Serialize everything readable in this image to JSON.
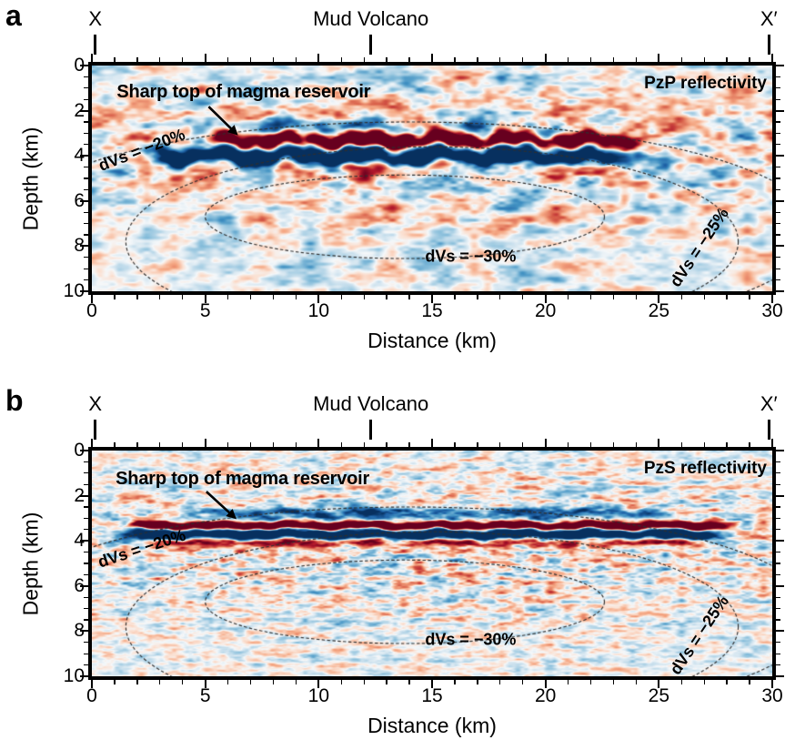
{
  "figure": {
    "background": "#ffffff",
    "frame_color": "#000000"
  },
  "colormap_stops": [
    [
      -1.0,
      "#07305f"
    ],
    [
      -0.72,
      "#1f63a8"
    ],
    [
      -0.5,
      "#4292c3"
    ],
    [
      -0.3,
      "#8fc2dd"
    ],
    [
      -0.12,
      "#d3e5f0"
    ],
    [
      0.0,
      "#f5f8fa"
    ],
    [
      0.12,
      "#fbe0d1"
    ],
    [
      0.3,
      "#f5a884"
    ],
    [
      0.5,
      "#d8604a"
    ],
    [
      0.72,
      "#b2182b"
    ],
    [
      1.0,
      "#67001f"
    ]
  ],
  "chart_data": [
    {
      "type": "heatmap",
      "panel_letter": "a",
      "title": "PzP reflectivity",
      "xlabel": "Distance (km)",
      "ylabel": "Depth (km)",
      "xlim": [
        0,
        30
      ],
      "ylim": [
        0,
        10
      ],
      "x_major_ticks": [
        0,
        5,
        10,
        15,
        20,
        25,
        30
      ],
      "x_minor_step": 1,
      "y_major_ticks": [
        0,
        2,
        4,
        6,
        8,
        10
      ],
      "y_minor_step": 0.5,
      "top_markers": [
        {
          "label": "X",
          "x_km": 0.15
        },
        {
          "label": "Mud Volcano",
          "x_km": 12.3
        },
        {
          "label": "X′",
          "x_km": 29.85
        }
      ],
      "annotation": {
        "text": "Sharp top of magma reservoir",
        "text_x_km": 1.1,
        "text_y_km": 0.72,
        "arrow_from_km": [
          5.15,
          1.82
        ],
        "arrow_to_km": [
          6.35,
          3.0
        ]
      },
      "reflector": {
        "description": "bright reflector at top of magma reservoir",
        "depth_km": 3.3,
        "extent_km": [
          5,
          24.5
        ],
        "polarity": "red-over-blue"
      },
      "contours": [
        {
          "label": "dVs = −20%",
          "value_pct": -20,
          "cx_km": 14.0,
          "cy_km": 7.3,
          "rx_km": 18.0,
          "ry_km": 4.8,
          "label_x_km": 2.2,
          "label_y_km": 3.75,
          "label_rot_deg": -21
        },
        {
          "label": "dVs = −25%",
          "value_pct": -25,
          "cx_km": 15.0,
          "cy_km": 7.8,
          "rx_km": 13.5,
          "ry_km": 4.2,
          "label_x_km": 26.8,
          "label_y_km": 8.05,
          "label_rot_deg": -56
        },
        {
          "label": "dVs = −30%",
          "value_pct": -30,
          "cx_km": 13.8,
          "cy_km": 6.7,
          "rx_km": 8.8,
          "ry_km": 1.85,
          "label_x_km": 16.7,
          "label_y_km": 8.45,
          "label_rot_deg": 0
        }
      ],
      "render": {
        "seed": 7,
        "noise_scales": [
          [
            30,
            13
          ],
          [
            15,
            6.5
          ],
          [
            7.5,
            3.2
          ]
        ],
        "noise_amps": [
          1,
          0.6,
          0.38
        ],
        "noise_base": 0.56,
        "contrast": 2.2,
        "env": {
          "min": 0.5,
          "dc": 3.7,
          "ds": 2.7,
          "xmin": 0.75,
          "xc": 15,
          "xs": 10
        },
        "band": {
          "y0": 3.3,
          "wiggle": 0.13,
          "red_amp": 2.1,
          "red_sigma": 0.26,
          "red_window": [
            4.6,
            6.4,
            22.6,
            24.8
          ],
          "red_mod": [
            0.3,
            0.15
          ],
          "blue_amp": 1.9,
          "blue_offset": 0.72,
          "blue_sigma": 0.34,
          "blue_window": [
            1.8,
            4.2,
            21.5,
            24.4
          ],
          "upper_blue_amp": 0.45,
          "upper_blue_offset": 0.6,
          "upper_blue_sigma": 0.3,
          "upper_blue_window": [
            6,
            9,
            20,
            23
          ],
          "lower_red_amp": 0.45,
          "lower_red_offset": 1.35,
          "lower_red_sigma": 0.42,
          "lower_red_window": [
            2,
            5,
            20,
            24
          ]
        }
      }
    },
    {
      "type": "heatmap",
      "panel_letter": "b",
      "title": "PzS reflectivity",
      "xlabel": "Distance (km)",
      "ylabel": "Depth (km)",
      "xlim": [
        0,
        30
      ],
      "ylim": [
        0,
        10
      ],
      "x_major_ticks": [
        0,
        5,
        10,
        15,
        20,
        25,
        30
      ],
      "x_minor_step": 1,
      "y_major_ticks": [
        0,
        2,
        4,
        6,
        8,
        10
      ],
      "y_minor_step": 0.5,
      "top_markers": [
        {
          "label": "X",
          "x_km": 0.15
        },
        {
          "label": "Mud Volcano",
          "x_km": 12.3
        },
        {
          "label": "X′",
          "x_km": 29.85
        }
      ],
      "annotation": {
        "text": "Sharp top of magma reservoir",
        "text_x_km": 1.05,
        "text_y_km": 0.82,
        "arrow_from_km": [
          5.05,
          1.82
        ],
        "arrow_to_km": [
          6.28,
          2.95
        ]
      },
      "reflector": {
        "description": "bright reflector at top of magma reservoir",
        "depth_km": 3.3,
        "extent_km": [
          1.5,
          28
        ],
        "polarity": "red-over-blue"
      },
      "contours": [
        {
          "label": "dVs = −20%",
          "value_pct": -20,
          "cx_km": 14.0,
          "cy_km": 7.3,
          "rx_km": 18.0,
          "ry_km": 4.8,
          "label_x_km": 2.2,
          "label_y_km": 4.35,
          "label_rot_deg": -18
        },
        {
          "label": "dVs = −25%",
          "value_pct": -25,
          "cx_km": 15.0,
          "cy_km": 7.8,
          "rx_km": 13.5,
          "ry_km": 4.2,
          "label_x_km": 26.8,
          "label_y_km": 8.2,
          "label_rot_deg": -56
        },
        {
          "label": "dVs = −30%",
          "value_pct": -30,
          "cx_km": 13.8,
          "cy_km": 6.7,
          "rx_km": 8.8,
          "ry_km": 1.85,
          "label_x_km": 16.7,
          "label_y_km": 8.4,
          "label_rot_deg": 0
        }
      ],
      "render": {
        "seed": 13,
        "noise_scales": [
          [
            18,
            5
          ],
          [
            9,
            2.6
          ],
          [
            4.5,
            1.8
          ]
        ],
        "noise_amps": [
          1,
          0.6,
          0.35
        ],
        "noise_base": 0.42,
        "contrast": 2.2,
        "env": {
          "min": 0.5,
          "dc": 4.2,
          "ds": 3.2,
          "xmin": 0.8,
          "xc": 15,
          "xs": 11
        },
        "band": {
          "y0": 3.32,
          "wiggle": 0.05,
          "red_amp": 2.4,
          "red_sigma": 0.15,
          "red_window": [
            1.2,
            2.6,
            26.8,
            28.8
          ],
          "red_mod": [
            0.12,
            0.08
          ],
          "blue_amp": 2.1,
          "blue_offset": 0.4,
          "blue_sigma": 0.2,
          "blue_window": [
            0.8,
            2.4,
            26.6,
            28.8
          ],
          "upper_blue_amp": 0.85,
          "upper_blue_offset": 0.52,
          "upper_blue_sigma": 0.24,
          "upper_blue_window": [
            3.5,
            6.5,
            23.5,
            26.5
          ],
          "lower_red_amp": 0.7,
          "lower_red_offset": 0.75,
          "lower_red_sigma": 0.24,
          "lower_red_window": [
            2,
            4,
            26,
            28
          ]
        }
      }
    }
  ]
}
